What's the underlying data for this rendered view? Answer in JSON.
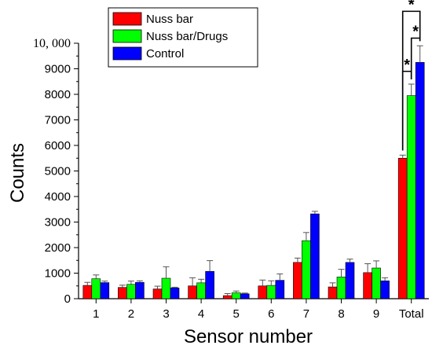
{
  "chart_data": {
    "type": "bar",
    "xlabel": "Sensor number",
    "ylabel": "Counts",
    "ylim": [
      0,
      10000
    ],
    "yticks": [
      0,
      1000,
      2000,
      3000,
      4000,
      5000,
      6000,
      7000,
      8000,
      9000,
      10000
    ],
    "ytick_labels": [
      "0",
      "1000",
      "2000",
      "3000",
      "4000",
      "5000",
      "6000",
      "7000",
      "8000",
      "9000",
      "10, 000"
    ],
    "categories": [
      "1",
      "2",
      "3",
      "4",
      "5",
      "6",
      "7",
      "8",
      "9",
      "Total"
    ],
    "series": [
      {
        "name": "Nuss bar",
        "color": "#ff0000",
        "values": [
          520,
          440,
          380,
          500,
          120,
          500,
          1420,
          460,
          1020,
          5500
        ],
        "errors": [
          120,
          90,
          110,
          320,
          80,
          230,
          170,
          160,
          350,
          120
        ]
      },
      {
        "name": "Nuss bar/Drugs",
        "color": "#00ff00",
        "values": [
          780,
          560,
          800,
          620,
          230,
          520,
          2270,
          850,
          1200,
          7950
        ],
        "errors": [
          150,
          130,
          450,
          140,
          70,
          180,
          320,
          300,
          280,
          450
        ]
      },
      {
        "name": "Control",
        "color": "#0000ff",
        "values": [
          630,
          640,
          420,
          1070,
          190,
          720,
          3320,
          1420,
          700,
          9250
        ],
        "errors": [
          60,
          60,
          30,
          420,
          30,
          250,
          100,
          130,
          120,
          650
        ]
      }
    ],
    "legend_position": "top-left",
    "annotations": [
      "*",
      "*",
      "*"
    ]
  }
}
